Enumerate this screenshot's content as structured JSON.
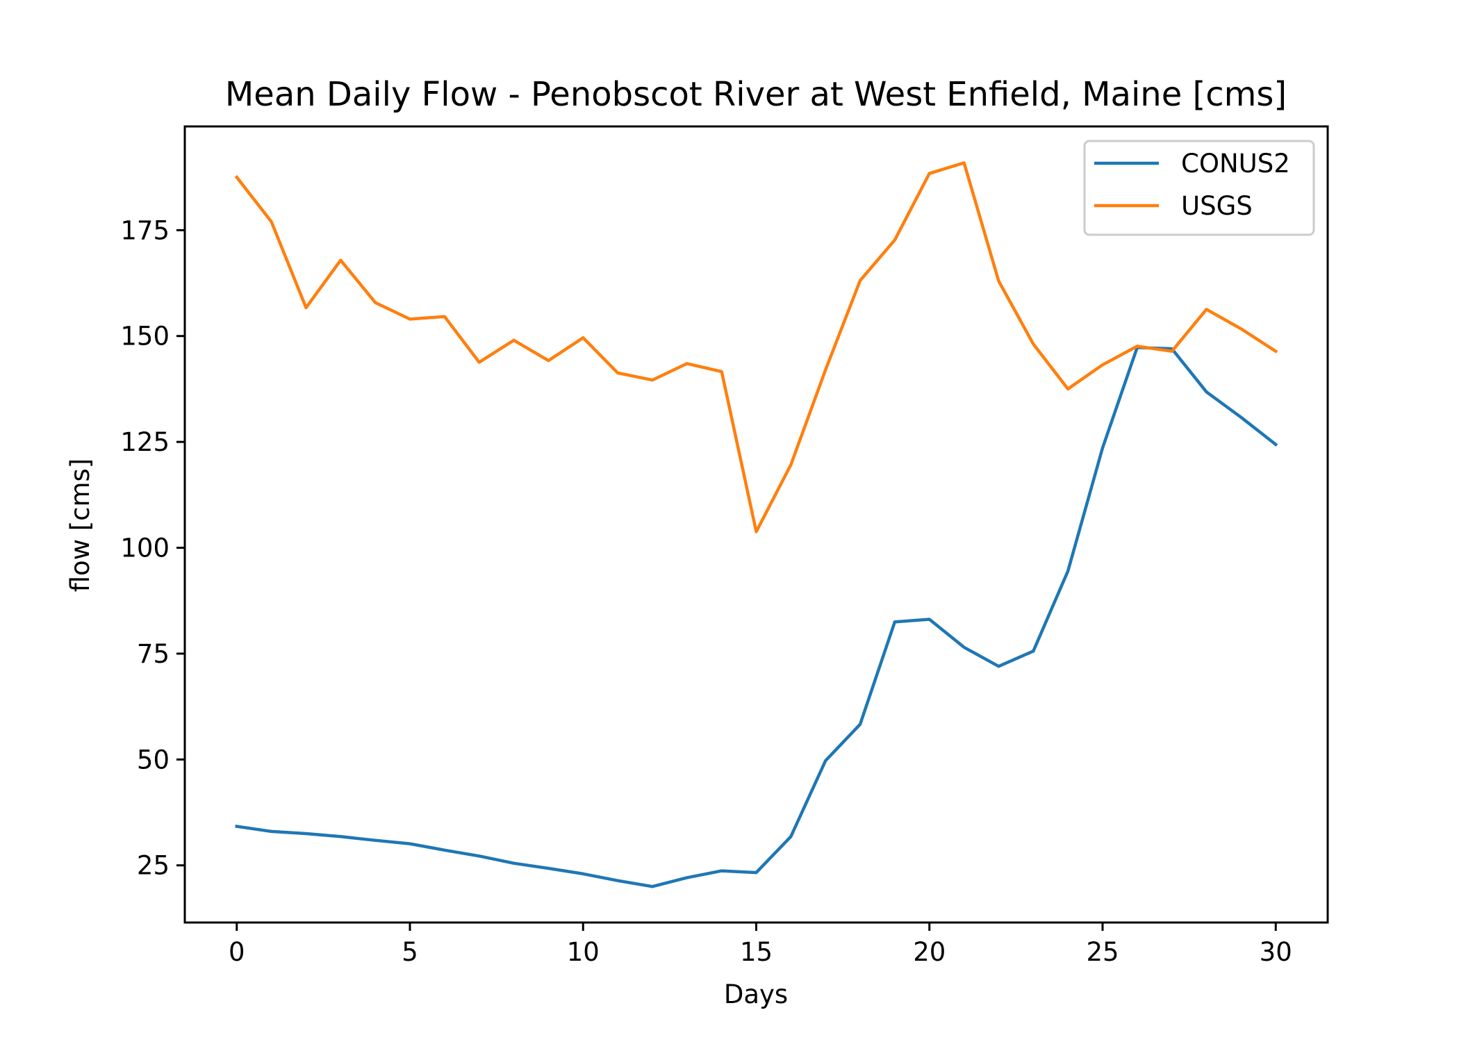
{
  "chart_data": {
    "type": "line",
    "title": "Mean Daily Flow - Penobscot River at West Enfield, Maine [cms]",
    "xlabel": "Days",
    "ylabel": "flow [cms]",
    "xlim": [
      -1.5,
      31.5
    ],
    "ylim": [
      11.5,
      199.5
    ],
    "xticks": [
      0,
      5,
      10,
      15,
      20,
      25,
      30
    ],
    "yticks": [
      25,
      50,
      75,
      100,
      125,
      150,
      175
    ],
    "grid": false,
    "legend_position": "top-right",
    "x": [
      0,
      1,
      2,
      3,
      4,
      5,
      6,
      7,
      8,
      9,
      10,
      11,
      12,
      13,
      14,
      15,
      16,
      17,
      18,
      19,
      20,
      21,
      22,
      23,
      24,
      25,
      26,
      27,
      28,
      29,
      30
    ],
    "series": [
      {
        "name": "CONUS2",
        "color": "#1f77b4",
        "values": [
          34.2,
          33.0,
          32.5,
          31.8,
          30.9,
          30.1,
          28.6,
          27.2,
          25.5,
          24.3,
          23.0,
          21.4,
          20.0,
          22.1,
          23.7,
          23.3,
          31.8,
          49.7,
          58.3,
          82.5,
          83.1,
          76.5,
          72.0,
          75.6,
          94.5,
          123.6,
          147.3,
          147.0,
          136.8,
          130.8,
          124.4
        ]
      },
      {
        "name": "USGS",
        "color": "#ff7f0e",
        "values": [
          187.5,
          177.0,
          156.7,
          167.9,
          157.9,
          154.0,
          154.6,
          143.8,
          149.0,
          144.2,
          149.6,
          141.3,
          139.6,
          143.5,
          141.6,
          103.8,
          119.6,
          142.0,
          163.1,
          172.7,
          188.4,
          190.9,
          163.0,
          148.1,
          137.5,
          143.2,
          147.6,
          146.4,
          156.3,
          151.7,
          146.4
        ]
      }
    ]
  }
}
